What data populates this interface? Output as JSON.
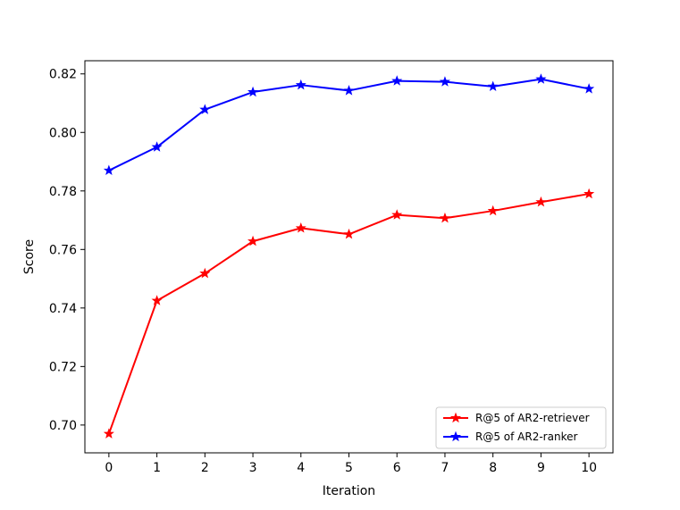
{
  "chart_data": {
    "type": "line",
    "xlabel": "Iteration",
    "ylabel": "Score",
    "x": [
      0,
      1,
      2,
      3,
      4,
      5,
      6,
      7,
      8,
      9,
      10
    ],
    "xlim": [
      -0.5,
      10.5
    ],
    "ylim": [
      0.6905,
      0.8245
    ],
    "xticks": [
      "0",
      "1",
      "2",
      "3",
      "4",
      "5",
      "6",
      "7",
      "8",
      "9",
      "10"
    ],
    "yticks": [
      "0.70",
      "0.72",
      "0.74",
      "0.76",
      "0.78",
      "0.80",
      "0.82"
    ],
    "ytick_values": [
      0.7,
      0.72,
      0.74,
      0.76,
      0.78,
      0.8,
      0.82
    ],
    "grid": false,
    "legend_position": "lower-right",
    "marker": "star",
    "series": [
      {
        "name": "R@5 of AR2-retriever",
        "color": "#ff0000",
        "values": [
          0.697,
          0.7425,
          0.7518,
          0.7628,
          0.7673,
          0.7652,
          0.7718,
          0.7707,
          0.7732,
          0.7762,
          0.779
        ]
      },
      {
        "name": "R@5 of AR2-ranker",
        "color": "#0000ff",
        "values": [
          0.787,
          0.795,
          0.8078,
          0.8138,
          0.8162,
          0.8143,
          0.8176,
          0.8173,
          0.8157,
          0.8182,
          0.8149
        ]
      }
    ]
  }
}
